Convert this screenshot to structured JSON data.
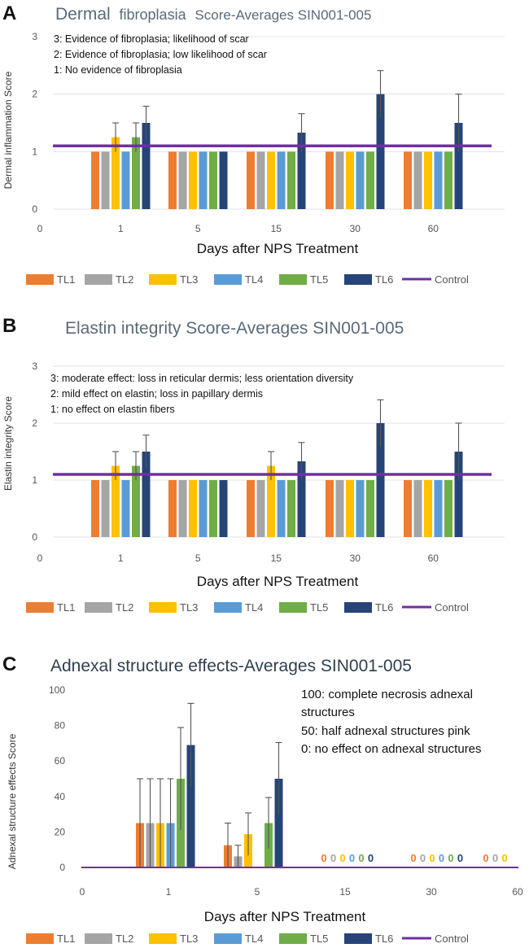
{
  "colors": {
    "TL1": "#ed7d31",
    "TL2": "#a5a5a5",
    "TL3": "#ffc000",
    "TL4": "#5b9bd5",
    "TL5": "#70ad47",
    "TL6": "#264478",
    "Control": "#7030a0",
    "grid": "#e3e3e3",
    "error": "#555555"
  },
  "chart_data": [
    {
      "panel_label": "A",
      "type": "bar",
      "title_part1": "Dermal",
      "title_part2": "fibroplasia",
      "title_part3": "Score-Averages SIN001-005",
      "xlabel": "Days after NPS Treatment",
      "ylabel": "Dermal inflammation Score",
      "categories": [
        "1",
        "5",
        "15",
        "30",
        "60"
      ],
      "x_origin_label": "0",
      "ylim": [
        0,
        3
      ],
      "yticks": [
        "0",
        "1",
        "2",
        "3"
      ],
      "grid": true,
      "legend_position": "bottom",
      "annotations": [
        "3: Evidence of fibroplasia; likelihood of scar",
        "2: Evidence of fibroplasia; low likelihood of scar",
        "1: No evidence of fibroplasia"
      ],
      "series": [
        {
          "name": "TL1",
          "values": [
            1,
            1,
            1,
            1,
            1
          ],
          "errors": [
            0,
            0,
            0,
            0,
            0
          ]
        },
        {
          "name": "TL2",
          "values": [
            1,
            1,
            1,
            1,
            1
          ],
          "errors": [
            0,
            0,
            0,
            0,
            0
          ]
        },
        {
          "name": "TL3",
          "values": [
            1.25,
            1,
            1,
            1,
            1
          ],
          "errors": [
            0.25,
            0,
            0,
            0,
            0
          ]
        },
        {
          "name": "TL4",
          "values": [
            1,
            1,
            1,
            1,
            1
          ],
          "errors": [
            0,
            0,
            0,
            0,
            0
          ]
        },
        {
          "name": "TL5",
          "values": [
            1.25,
            1,
            1,
            1,
            1
          ],
          "errors": [
            0.25,
            0,
            0,
            0,
            0
          ]
        },
        {
          "name": "TL6",
          "values": [
            1.5,
            1,
            1.33,
            2,
            1.5
          ],
          "errors": [
            0.29,
            0,
            0.33,
            0.41,
            0.5
          ]
        }
      ],
      "control": {
        "name": "Control",
        "value": 1.1
      }
    },
    {
      "panel_label": "B",
      "type": "bar",
      "title": "Elastin integrity Score-Averages SIN001-005",
      "xlabel": "Days after NPS Treatment",
      "ylabel": "Elastin integrity Score",
      "categories": [
        "1",
        "5",
        "15",
        "30",
        "60"
      ],
      "x_origin_label": "0",
      "ylim": [
        0,
        3
      ],
      "yticks": [
        "0",
        "1",
        "2",
        "3"
      ],
      "grid": true,
      "legend_position": "bottom",
      "annotations": [
        "3: moderate effect: loss in reticular dermis; less orientation diversity",
        "2: mild effect on elastin; loss in papillary dermis",
        "1: no effect on elastin fibers"
      ],
      "series": [
        {
          "name": "TL1",
          "values": [
            1,
            1,
            1,
            1,
            1
          ],
          "errors": [
            0,
            0,
            0,
            0,
            0
          ]
        },
        {
          "name": "TL2",
          "values": [
            1,
            1,
            1,
            1,
            1
          ],
          "errors": [
            0,
            0,
            0,
            0,
            0
          ]
        },
        {
          "name": "TL3",
          "values": [
            1.25,
            1,
            1.25,
            1,
            1
          ],
          "errors": [
            0.25,
            0,
            0.25,
            0,
            0
          ]
        },
        {
          "name": "TL4",
          "values": [
            1,
            1,
            1,
            1,
            1
          ],
          "errors": [
            0,
            0,
            0,
            0,
            0
          ]
        },
        {
          "name": "TL5",
          "values": [
            1.25,
            1,
            1,
            1,
            1
          ],
          "errors": [
            0.25,
            0,
            0,
            0,
            0
          ]
        },
        {
          "name": "TL6",
          "values": [
            1.5,
            1,
            1.33,
            2,
            1.5
          ],
          "errors": [
            0.29,
            0,
            0.33,
            0.41,
            0.5
          ]
        }
      ],
      "control": {
        "name": "Control",
        "value": 1.1
      }
    },
    {
      "panel_label": "C",
      "type": "bar",
      "title": "Adnexal structure effects-Averages SIN001-005",
      "xlabel": "Days after NPS Treatment",
      "ylabel": "Adnexal structure effects Score",
      "categories": [
        "1",
        "5",
        "15",
        "30",
        "60"
      ],
      "x_origin_label": "0",
      "ylim": [
        0,
        100
      ],
      "yticks": [
        "0",
        "20",
        "40",
        "60",
        "80",
        "100"
      ],
      "grid": false,
      "legend_position": "bottom",
      "annotations": [
        "100: complete necrosis adnexal",
        "structures",
        "50: half adnexal structures pink",
        "0: no effect on adnexal structures"
      ],
      "zero_label": "0",
      "series": [
        {
          "name": "TL1",
          "values": [
            25,
            12.5,
            0,
            0,
            0
          ],
          "errors": [
            25,
            12.5,
            0,
            0,
            0
          ]
        },
        {
          "name": "TL2",
          "values": [
            25,
            6.25,
            0,
            0,
            0
          ],
          "errors": [
            25,
            6.25,
            0,
            0,
            0
          ]
        },
        {
          "name": "TL3",
          "values": [
            25,
            18.75,
            0,
            0,
            0
          ],
          "errors": [
            25,
            12,
            0,
            0,
            0
          ]
        },
        {
          "name": "TL4",
          "values": [
            25,
            0,
            0,
            0,
            0
          ],
          "errors": [
            25,
            0,
            0,
            0,
            0
          ]
        },
        {
          "name": "TL5",
          "values": [
            50,
            25,
            0,
            0,
            0
          ],
          "errors": [
            28.9,
            14.4,
            0,
            0,
            0
          ]
        },
        {
          "name": "TL6",
          "values": [
            69,
            50,
            0,
            0,
            0
          ],
          "errors": [
            23.5,
            20.4,
            0,
            0,
            0
          ]
        }
      ],
      "control": {
        "name": "Control",
        "value": 0
      }
    }
  ]
}
